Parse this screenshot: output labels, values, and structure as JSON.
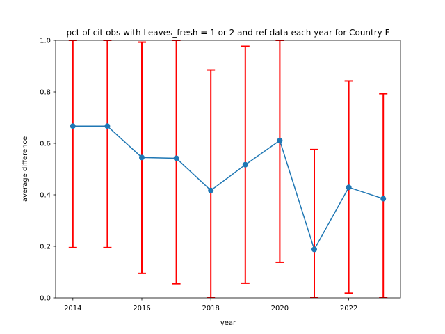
{
  "chart_data": {
    "type": "line",
    "title": "pct of cit obs with Leaves_fresh = 1 or 2 and ref data each year for Country F",
    "xlabel": "year",
    "ylabel": "average difference",
    "xlim": [
      2013.5,
      2023.5
    ],
    "ylim": [
      0.0,
      1.0
    ],
    "x_ticks": [
      "2014",
      "2016",
      "2018",
      "2020",
      "2022"
    ],
    "y_ticks": [
      "0.0",
      "0.2",
      "0.4",
      "0.6",
      "0.8",
      "1.0"
    ],
    "grid": false,
    "legend": "none",
    "series": [
      {
        "x": [
          2014,
          2015,
          2016,
          2017,
          2018,
          2019,
          2020,
          2021,
          2022,
          2023
        ],
        "y": [
          0.667,
          0.667,
          0.545,
          0.542,
          0.417,
          0.517,
          0.611,
          0.188,
          0.429,
          0.385
        ],
        "error_low": [
          0.195,
          0.195,
          0.095,
          0.055,
          0.0,
          0.057,
          0.138,
          0.0,
          0.018,
          0.0
        ],
        "error_high": [
          1.0,
          1.0,
          0.993,
          1.0,
          0.885,
          0.977,
          1.0,
          0.576,
          0.842,
          0.793
        ],
        "color": "#1f77b4",
        "error_color": "#ff0000"
      }
    ]
  }
}
